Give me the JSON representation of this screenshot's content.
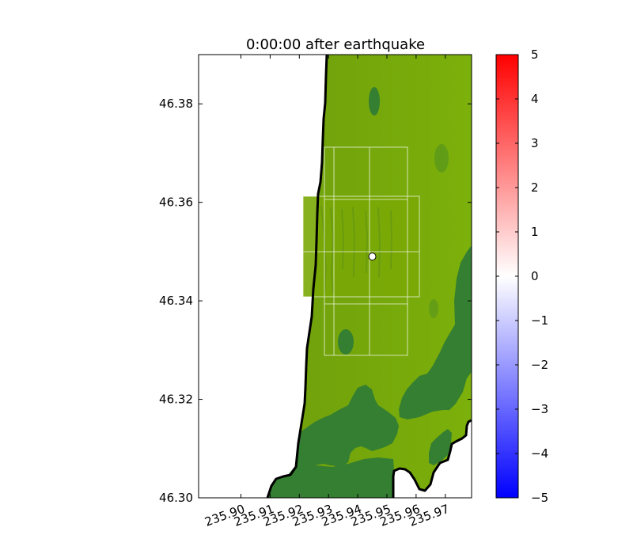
{
  "chart_data": {
    "type": "heatmap",
    "title": "0:00:00 after earthquake",
    "xlabel": "",
    "ylabel": "",
    "xlim": [
      235.8855,
      235.979
    ],
    "ylim": [
      46.3,
      46.39
    ],
    "x_ticks": [
      235.9,
      235.91,
      235.92,
      235.93,
      235.94,
      235.95,
      235.96,
      235.97
    ],
    "x_tick_labels": [
      "235.90",
      "235.91",
      "235.92",
      "235.93",
      "235.94",
      "235.95",
      "235.96",
      "235.97"
    ],
    "y_ticks": [
      46.3,
      46.32,
      46.34,
      46.36,
      46.38
    ],
    "y_tick_labels": [
      "46.30",
      "46.32",
      "46.34",
      "46.36",
      "46.38"
    ],
    "grid": false,
    "marker_point": {
      "x": 235.945,
      "y": 46.349
    },
    "colorbar": {
      "min": -5,
      "max": 5,
      "ticks": [
        5,
        4,
        3,
        2,
        1,
        0,
        -1,
        -2,
        -3,
        -4,
        -5
      ],
      "tick_labels": [
        "5",
        "4",
        "3",
        "2",
        "1",
        "0",
        "−1",
        "−2",
        "−3",
        "−4",
        "−5"
      ],
      "colors": {
        "low": "#0000ff",
        "mid": "#ffffff",
        "high": "#ff0000"
      }
    },
    "colors": {
      "land_light": "#79ad09",
      "land_dark": "#347f31",
      "ocean": "#ffffff",
      "coastline": "#000000"
    }
  }
}
